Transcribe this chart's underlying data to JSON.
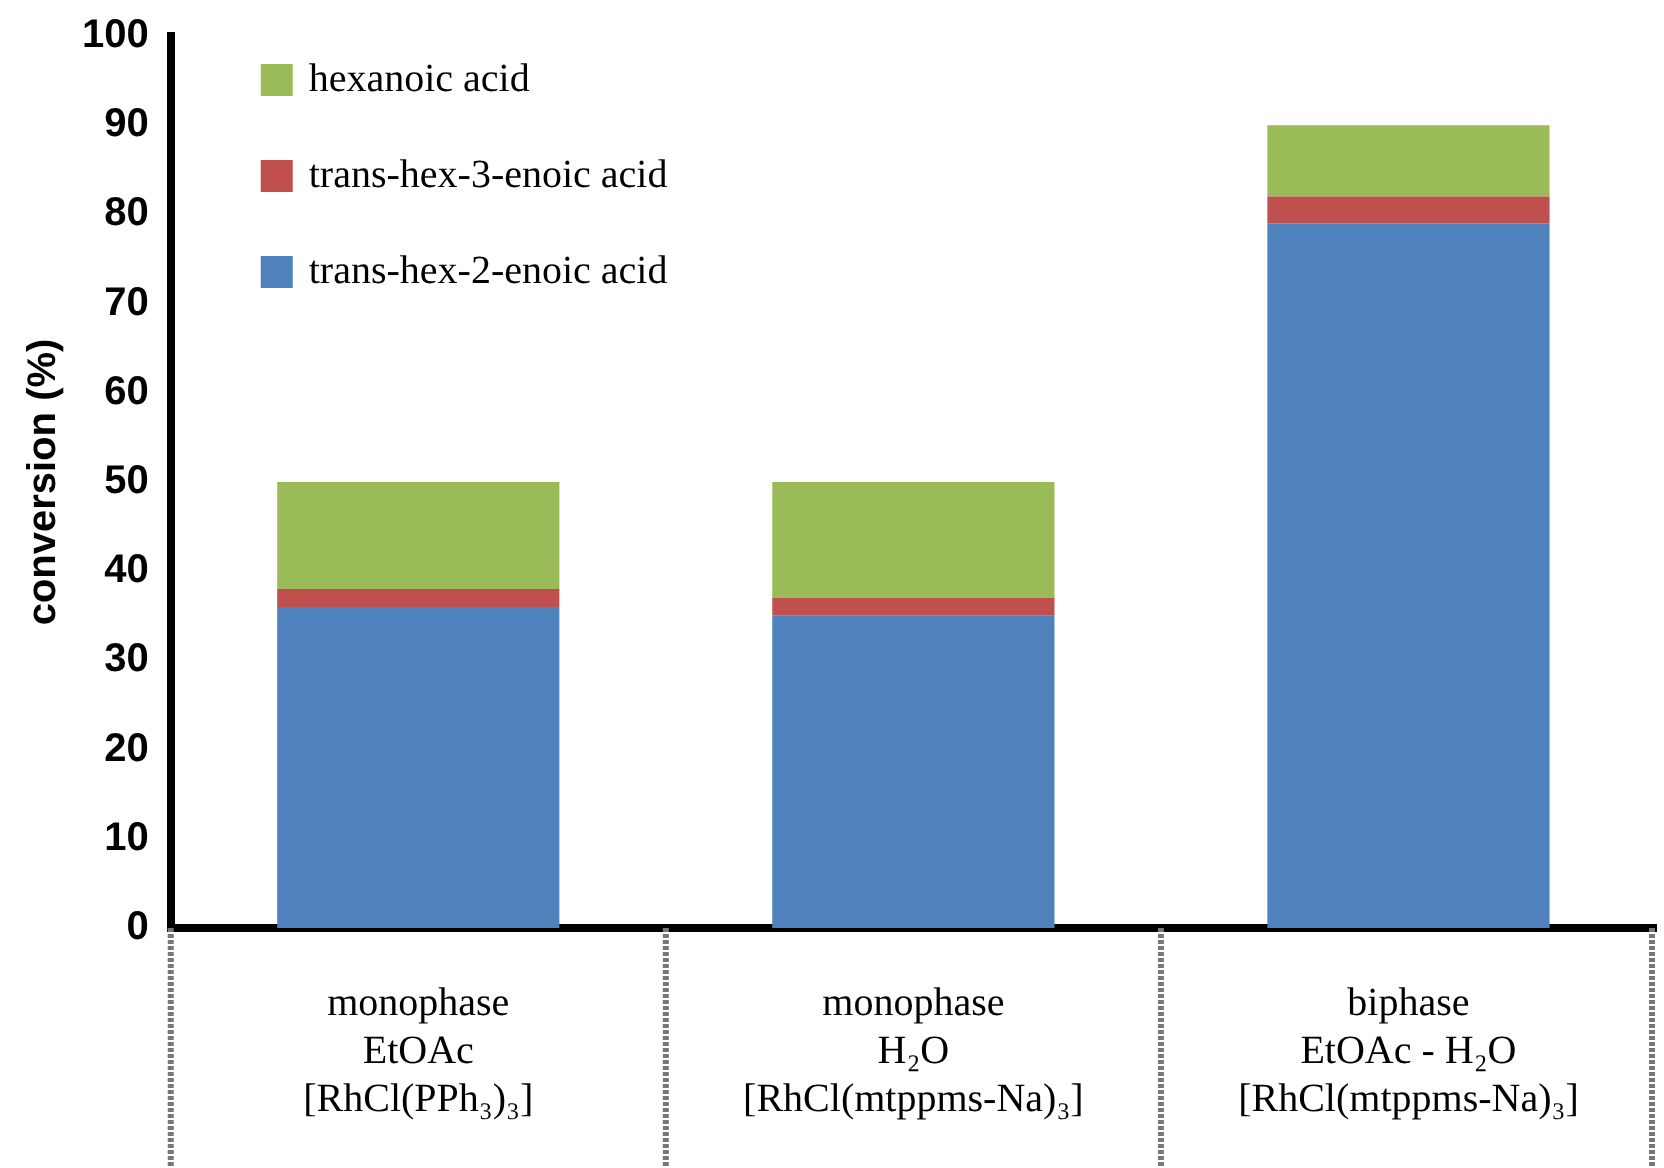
{
  "chart_data": {
    "type": "bar",
    "stacked": true,
    "ylabel": "conversion (%)",
    "categories": [
      "monophase\nEtOAc\n[RhCl(PPh₃)₃]",
      "monophase\nH₂O\n[RhCl(mtppms-Na)₃]",
      "biphase\nEtOAc - H₂O\n[RhCl(mtppms-Na)₃]"
    ],
    "series": [
      {
        "name": "trans-hex-2-enoic acid",
        "color": "#4f81bd",
        "values": [
          36,
          35,
          79
        ]
      },
      {
        "name": "trans-hex-3-enoic acid",
        "color": "#c0504d",
        "values": [
          2,
          2,
          3
        ]
      },
      {
        "name": "hexanoic acid",
        "color": "#9bbb59",
        "values": [
          12,
          13,
          8
        ]
      }
    ],
    "ylim": [
      0,
      100
    ],
    "yticks": [
      0,
      10,
      20,
      30,
      40,
      50,
      60,
      70,
      80,
      90,
      100
    ],
    "legend": "top left"
  }
}
